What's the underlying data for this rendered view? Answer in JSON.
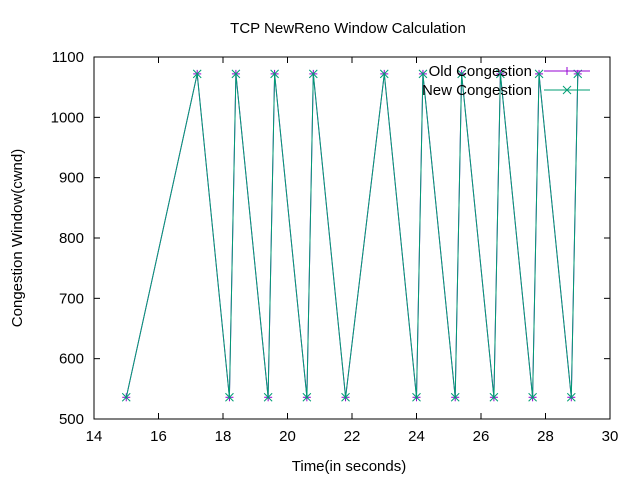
{
  "chart_data": {
    "type": "line",
    "title": "TCP NewReno Window Calculation",
    "xlabel": "Time(in seconds)",
    "ylabel": "Congestion Window(cwnd)",
    "xlim": [
      14,
      30
    ],
    "ylim": [
      500,
      1100
    ],
    "xticks": [
      14,
      16,
      18,
      20,
      22,
      24,
      26,
      28,
      30
    ],
    "yticks": [
      500,
      600,
      700,
      800,
      900,
      1000,
      1100
    ],
    "grid": false,
    "legend": "top-right",
    "x": [
      15.0,
      17.2,
      18.2,
      18.4,
      19.4,
      19.6,
      20.6,
      20.8,
      21.8,
      23.0,
      24.0,
      24.2,
      25.2,
      25.4,
      26.4,
      26.6,
      27.6,
      27.8,
      28.8,
      29.0
    ],
    "series": [
      {
        "name": "Old Congestion",
        "color": "#9400d3",
        "marker": "plus",
        "values": [
          536,
          1072,
          536,
          1072,
          536,
          1072,
          536,
          1072,
          536,
          1072,
          536,
          1072,
          536,
          1072,
          536,
          1072,
          536,
          1072,
          536,
          1072
        ]
      },
      {
        "name": "New Congestion",
        "color": "#009e73",
        "marker": "cross",
        "values": [
          536,
          1072,
          536,
          1072,
          536,
          1072,
          536,
          1072,
          536,
          1072,
          536,
          1072,
          536,
          1072,
          536,
          1072,
          536,
          1072,
          536,
          1072
        ]
      }
    ]
  }
}
